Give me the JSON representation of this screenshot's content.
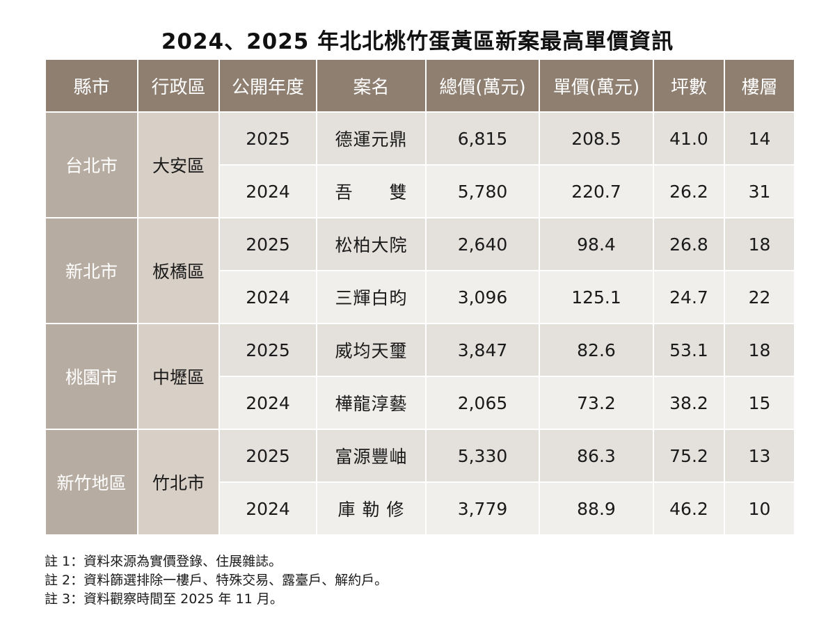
{
  "title": "2024、2025 年北北桃竹蛋黃區新案最高單價資訊",
  "headers": [
    "縣市",
    "行政區",
    "公開年度",
    "案名",
    "總價(萬元)",
    "單價(萬元)",
    "坪數",
    "樓層"
  ],
  "groups": [
    {
      "city": "台北市",
      "district": "大安區",
      "rows": [
        {
          "year": "2025",
          "name": "德運元鼎",
          "total": "6,815",
          "unit": "208.5",
          "ping": "41.0",
          "floor": "14"
        },
        {
          "year": "2024",
          "name": "吾　　雙",
          "total": "5,780",
          "unit": "220.7",
          "ping": "26.2",
          "floor": "31"
        }
      ]
    },
    {
      "city": "新北市",
      "district": "板橋區",
      "rows": [
        {
          "year": "2025",
          "name": "松柏大院",
          "total": "2,640",
          "unit": "98.4",
          "ping": "26.8",
          "floor": "18"
        },
        {
          "year": "2024",
          "name": "三輝白昀",
          "total": "3,096",
          "unit": "125.1",
          "ping": "24.7",
          "floor": "22"
        }
      ]
    },
    {
      "city": "桃園市",
      "district": "中壢區",
      "rows": [
        {
          "year": "2025",
          "name": "威均天璽",
          "total": "3,847",
          "unit": "82.6",
          "ping": "53.1",
          "floor": "18"
        },
        {
          "year": "2024",
          "name": "樺龍淳藝",
          "total": "2,065",
          "unit": "73.2",
          "ping": "38.2",
          "floor": "15"
        }
      ]
    },
    {
      "city": "新竹地區",
      "district": "竹北市",
      "rows": [
        {
          "year": "2025",
          "name": "富源豐岫",
          "total": "5,330",
          "unit": "86.3",
          "ping": "75.2",
          "floor": "13"
        },
        {
          "year": "2024",
          "name": "庫 勒 修",
          "total": "3,779",
          "unit": "88.9",
          "ping": "46.2",
          "floor": "10"
        }
      ]
    }
  ],
  "notes": [
    "註 1：資料來源為實價登錄、住展雜誌。",
    "註 2：資料篩選排除一樓戶、特殊交易、露臺戶、解約戶。",
    "註 3：資料觀察時間至 2025 年 11 月。"
  ]
}
